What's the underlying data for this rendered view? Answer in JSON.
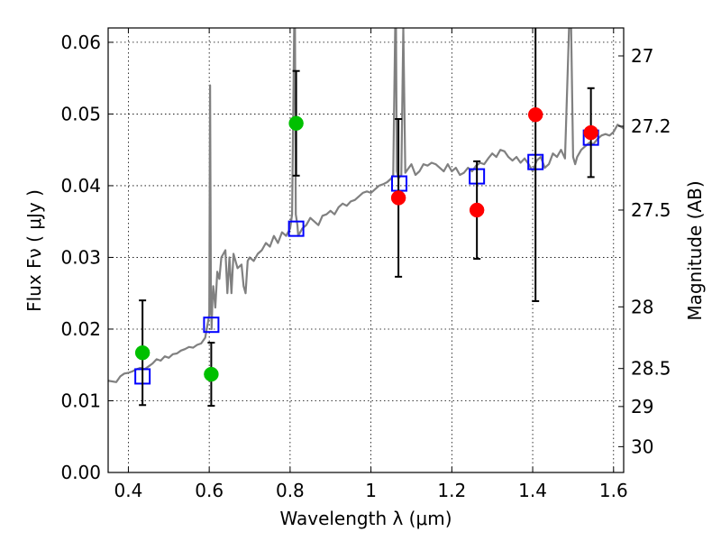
{
  "chart_data": {
    "type": "scatter",
    "xlabel": "Wavelength  λ (μm)",
    "ylabel": "Flux  Fν  ( μJy )",
    "y2label": "Magnitude (AB)",
    "xlim": [
      0.35,
      1.625
    ],
    "ylim": [
      0.0,
      0.062
    ],
    "grid": true,
    "x_ticks": [
      0.4,
      0.6,
      0.8,
      1.0,
      1.2,
      1.4,
      1.6
    ],
    "x_tick_labels": [
      "0.4",
      "0.6",
      "0.8",
      "1",
      "1.2",
      "1.4",
      "1.6"
    ],
    "y_ticks": [
      0.0,
      0.01,
      0.02,
      0.03,
      0.04,
      0.05,
      0.06
    ],
    "y_tick_labels": [
      "0.00",
      "0.01",
      "0.02",
      "0.03",
      "0.04",
      "0.05",
      "0.06"
    ],
    "y2_ticks": [
      {
        "label": "27",
        "flux": 0.0581
      },
      {
        "label": "27.2",
        "flux": 0.0483
      },
      {
        "label": "27.5",
        "flux": 0.0366
      },
      {
        "label": "28",
        "flux": 0.0231
      },
      {
        "label": "28.5",
        "flux": 0.0145
      },
      {
        "label": "29",
        "flux": 0.0092
      },
      {
        "label": "30",
        "flux": 0.0036
      }
    ],
    "series": [
      {
        "style": "spectrum-line",
        "color": "#808080",
        "x": [
          0.35,
          0.37,
          0.38,
          0.39,
          0.4,
          0.41,
          0.42,
          0.43,
          0.44,
          0.45,
          0.46,
          0.47,
          0.48,
          0.49,
          0.5,
          0.51,
          0.52,
          0.53,
          0.54,
          0.55,
          0.56,
          0.57,
          0.58,
          0.59,
          0.6,
          0.602,
          0.604,
          0.606,
          0.608,
          0.61,
          0.615,
          0.62,
          0.625,
          0.63,
          0.64,
          0.645,
          0.65,
          0.655,
          0.66,
          0.665,
          0.67,
          0.68,
          0.685,
          0.69,
          0.695,
          0.7,
          0.71,
          0.72,
          0.73,
          0.74,
          0.75,
          0.76,
          0.77,
          0.78,
          0.79,
          0.8,
          0.805,
          0.81,
          0.812,
          0.814,
          0.818,
          0.82,
          0.83,
          0.84,
          0.85,
          0.86,
          0.87,
          0.88,
          0.89,
          0.9,
          0.91,
          0.92,
          0.93,
          0.94,
          0.95,
          0.96,
          0.97,
          0.98,
          0.99,
          1.0,
          1.01,
          1.02,
          1.03,
          1.04,
          1.05,
          1.055,
          1.06,
          1.062,
          1.064,
          1.068,
          1.075,
          1.08,
          1.085,
          1.09,
          1.1,
          1.11,
          1.12,
          1.13,
          1.14,
          1.15,
          1.16,
          1.17,
          1.18,
          1.19,
          1.2,
          1.21,
          1.22,
          1.23,
          1.24,
          1.25,
          1.26,
          1.27,
          1.28,
          1.29,
          1.3,
          1.31,
          1.32,
          1.33,
          1.34,
          1.35,
          1.36,
          1.37,
          1.38,
          1.39,
          1.4,
          1.41,
          1.42,
          1.43,
          1.44,
          1.45,
          1.46,
          1.47,
          1.48,
          1.49,
          1.495,
          1.5,
          1.505,
          1.51,
          1.52,
          1.53,
          1.54,
          1.55,
          1.56,
          1.57,
          1.58,
          1.59,
          1.6,
          1.61,
          1.625
        ],
        "y": [
          0.0128,
          0.0126,
          0.0134,
          0.0138,
          0.0139,
          0.0141,
          0.0144,
          0.0146,
          0.0144,
          0.0148,
          0.0152,
          0.0158,
          0.0156,
          0.0162,
          0.016,
          0.0165,
          0.0166,
          0.017,
          0.0172,
          0.0175,
          0.0174,
          0.0178,
          0.018,
          0.0188,
          0.022,
          0.054,
          0.025,
          0.02,
          0.024,
          0.026,
          0.023,
          0.028,
          0.027,
          0.03,
          0.031,
          0.025,
          0.03,
          0.025,
          0.0305,
          0.0295,
          0.0285,
          0.029,
          0.026,
          0.025,
          0.0295,
          0.03,
          0.0295,
          0.0305,
          0.031,
          0.032,
          0.0315,
          0.033,
          0.032,
          0.0335,
          0.033,
          0.034,
          0.036,
          0.062,
          0.062,
          0.036,
          0.0345,
          0.033,
          0.034,
          0.0345,
          0.0355,
          0.035,
          0.0345,
          0.0358,
          0.036,
          0.0365,
          0.036,
          0.037,
          0.0375,
          0.0372,
          0.0378,
          0.038,
          0.0385,
          0.039,
          0.0392,
          0.039,
          0.0395,
          0.04,
          0.0402,
          0.0405,
          0.041,
          0.0415,
          0.062,
          0.062,
          0.042,
          0.041,
          0.0415,
          0.062,
          0.0418,
          0.0422,
          0.043,
          0.0415,
          0.042,
          0.043,
          0.0428,
          0.0432,
          0.043,
          0.0425,
          0.042,
          0.043,
          0.042,
          0.0425,
          0.0415,
          0.0418,
          0.0425,
          0.042,
          0.0428,
          0.0432,
          0.043,
          0.0438,
          0.0445,
          0.044,
          0.045,
          0.0448,
          0.044,
          0.0435,
          0.044,
          0.0432,
          0.0438,
          0.043,
          0.042,
          0.0435,
          0.044,
          0.0425,
          0.043,
          0.0445,
          0.044,
          0.045,
          0.0438,
          0.062,
          0.062,
          0.044,
          0.043,
          0.044,
          0.045,
          0.0455,
          0.046,
          0.0458,
          0.0465,
          0.047,
          0.0472,
          0.047,
          0.0475,
          0.0485,
          0.048
        ]
      },
      {
        "style": "open-square",
        "color": "#0000ff",
        "x": [
          0.435,
          0.605,
          0.815,
          1.07,
          1.262,
          1.407,
          1.544
        ],
        "y": [
          0.0134,
          0.0206,
          0.034,
          0.0403,
          0.0413,
          0.0433,
          0.0467
        ]
      },
      {
        "style": "filled-circle",
        "color": "#00c000",
        "x": [
          0.435,
          0.605,
          0.815
        ],
        "y": [
          0.0167,
          0.0137,
          0.0487
        ],
        "err": [
          0.0073,
          0.0044,
          0.0073
        ]
      },
      {
        "style": "filled-circle",
        "color": "#ff0000",
        "x": [
          1.068,
          1.262,
          1.407,
          1.544
        ],
        "y": [
          0.0383,
          0.0366,
          0.0499,
          0.0474
        ],
        "err": [
          0.011,
          0.0068,
          0.026,
          0.0062
        ]
      }
    ]
  }
}
